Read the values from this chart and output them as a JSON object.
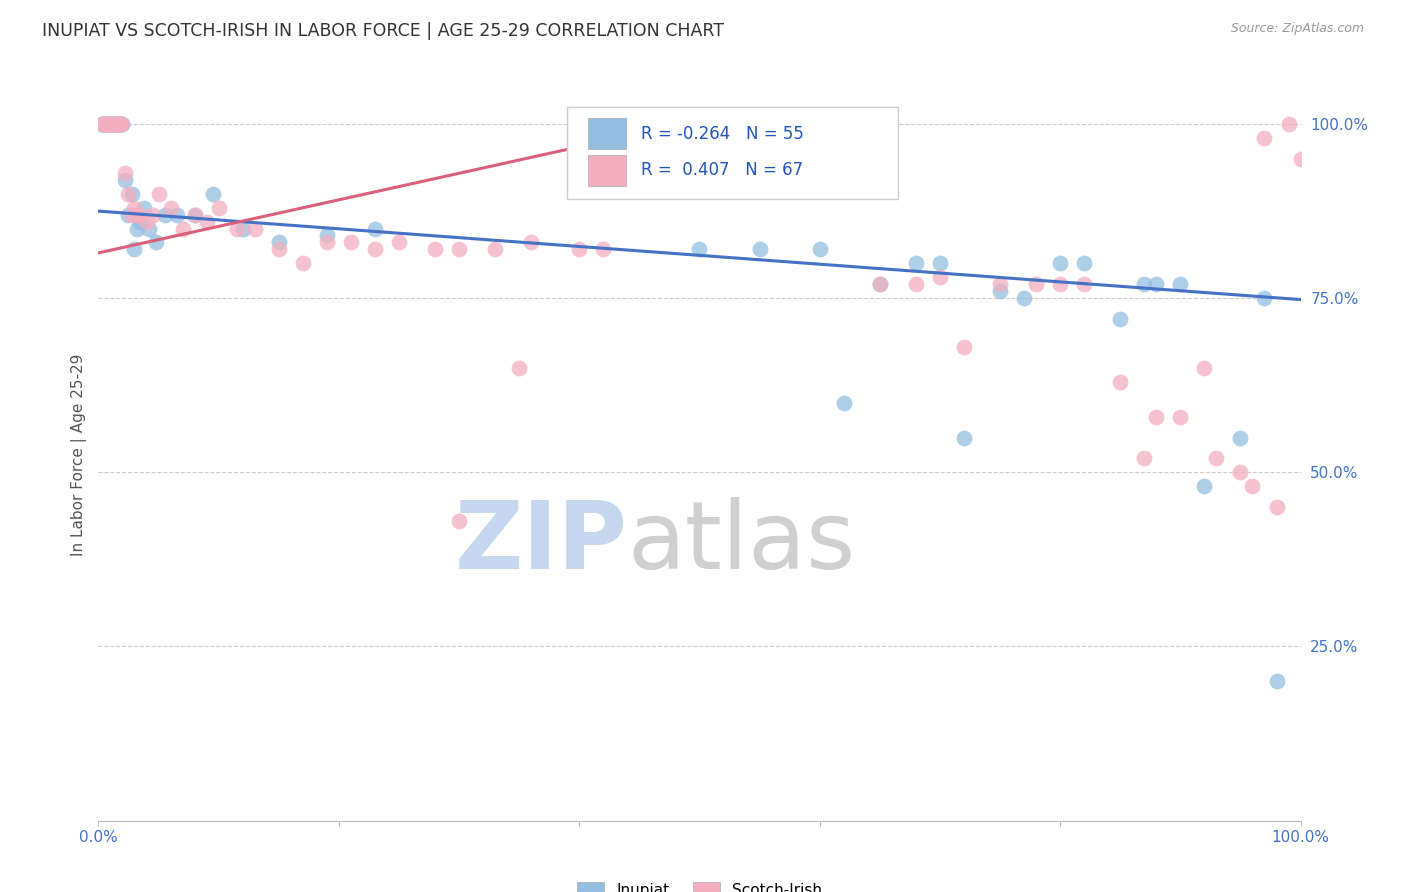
{
  "title": "INUPIAT VS SCOTCH-IRISH IN LABOR FORCE | AGE 25-29 CORRELATION CHART",
  "source": "Source: ZipAtlas.com",
  "ylabel": "In Labor Force | Age 25-29",
  "xlim": [
    0.0,
    1.0
  ],
  "ylim": [
    0.0,
    1.05
  ],
  "legend_labels": [
    "Inupiat",
    "Scotch-Irish"
  ],
  "inupiat_R": -0.264,
  "inupiat_N": 55,
  "scotch_irish_R": 0.407,
  "scotch_irish_N": 67,
  "inupiat_color": "#92bfe0",
  "scotch_irish_color": "#f5aec0",
  "inupiat_line_color": "#4472c4",
  "scotch_irish_line_color": "#d9607a",
  "inupiat_x": [
    0.003,
    0.004,
    0.005,
    0.006,
    0.007,
    0.008,
    0.009,
    0.01,
    0.011,
    0.012,
    0.013,
    0.014,
    0.015,
    0.016,
    0.017,
    0.018,
    0.019,
    0.02,
    0.022,
    0.025,
    0.028,
    0.03,
    0.032,
    0.035,
    0.038,
    0.042,
    0.048,
    0.055,
    0.065,
    0.08,
    0.095,
    0.12,
    0.15,
    0.19,
    0.23,
    0.5,
    0.55,
    0.6,
    0.62,
    0.65,
    0.68,
    0.7,
    0.72,
    0.75,
    0.77,
    0.8,
    0.82,
    0.85,
    0.87,
    0.88,
    0.9,
    0.92,
    0.95,
    0.97,
    0.98
  ],
  "inupiat_y": [
    1.0,
    1.0,
    1.0,
    1.0,
    1.0,
    1.0,
    1.0,
    1.0,
    1.0,
    1.0,
    1.0,
    1.0,
    1.0,
    1.0,
    1.0,
    1.0,
    1.0,
    1.0,
    0.92,
    0.87,
    0.9,
    0.82,
    0.85,
    0.86,
    0.88,
    0.85,
    0.83,
    0.87,
    0.87,
    0.87,
    0.9,
    0.85,
    0.83,
    0.84,
    0.85,
    0.82,
    0.82,
    0.82,
    0.6,
    0.77,
    0.8,
    0.8,
    0.55,
    0.76,
    0.75,
    0.8,
    0.8,
    0.72,
    0.77,
    0.77,
    0.77,
    0.48,
    0.55,
    0.75,
    0.2
  ],
  "scotch_irish_x": [
    0.003,
    0.004,
    0.005,
    0.006,
    0.007,
    0.008,
    0.009,
    0.01,
    0.011,
    0.012,
    0.013,
    0.014,
    0.015,
    0.016,
    0.017,
    0.018,
    0.02,
    0.022,
    0.025,
    0.028,
    0.03,
    0.032,
    0.035,
    0.04,
    0.045,
    0.05,
    0.06,
    0.07,
    0.08,
    0.09,
    0.1,
    0.115,
    0.13,
    0.15,
    0.17,
    0.19,
    0.21,
    0.23,
    0.25,
    0.28,
    0.3,
    0.33,
    0.36,
    0.4,
    0.42,
    0.65,
    0.68,
    0.7,
    0.72,
    0.75,
    0.78,
    0.8,
    0.82,
    0.85,
    0.87,
    0.88,
    0.9,
    0.92,
    0.93,
    0.95,
    0.96,
    0.97,
    0.98,
    0.99,
    1.0,
    0.3,
    0.35
  ],
  "scotch_irish_y": [
    1.0,
    1.0,
    1.0,
    1.0,
    1.0,
    1.0,
    1.0,
    1.0,
    1.0,
    1.0,
    1.0,
    1.0,
    1.0,
    1.0,
    1.0,
    1.0,
    1.0,
    0.93,
    0.9,
    0.87,
    0.88,
    0.87,
    0.87,
    0.86,
    0.87,
    0.9,
    0.88,
    0.85,
    0.87,
    0.86,
    0.88,
    0.85,
    0.85,
    0.82,
    0.8,
    0.83,
    0.83,
    0.82,
    0.83,
    0.82,
    0.82,
    0.82,
    0.83,
    0.82,
    0.82,
    0.77,
    0.77,
    0.78,
    0.68,
    0.77,
    0.77,
    0.77,
    0.77,
    0.63,
    0.52,
    0.58,
    0.58,
    0.65,
    0.52,
    0.5,
    0.48,
    0.98,
    0.45,
    1.0,
    0.95,
    0.43,
    0.65
  ],
  "line_inupiat_x0": 0.0,
  "line_inupiat_x1": 1.0,
  "line_inupiat_y0": 0.875,
  "line_inupiat_y1": 0.748,
  "line_scotch_x0": 0.0,
  "line_scotch_x1": 0.42,
  "line_scotch_y0": 0.815,
  "line_scotch_y1": 0.975
}
